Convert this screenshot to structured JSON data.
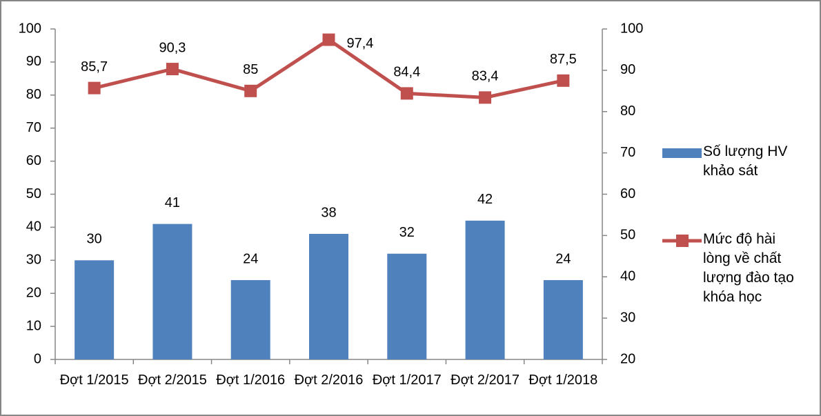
{
  "chart_data": {
    "type": "bar",
    "categories": [
      "Đợt 1/2015",
      "Đợt 2/2015",
      "Đợt 1/2016",
      "Đợt 2/2016",
      "Đợt 1/2017",
      "Đợt 2/2017",
      "Đợt 1/2018"
    ],
    "series": [
      {
        "name": "Số lượng HV khảo sát",
        "type": "bar",
        "color": "#4f81bd",
        "values": [
          30,
          41,
          24,
          38,
          32,
          42,
          24
        ]
      },
      {
        "name": "Mức độ hài lòng về chất lượng đào tạo khóa học",
        "type": "line",
        "axis": "y2",
        "color": "#c0504d",
        "values": [
          85.7,
          90.3,
          85,
          97.4,
          84.4,
          83.4,
          87.5
        ],
        "value_labels": [
          "85,7",
          "90,3",
          "85",
          "97,4",
          "84,4",
          "83,4",
          "87,5"
        ]
      }
    ],
    "ylim": [
      0,
      100
    ],
    "yticks": [
      0,
      10,
      20,
      30,
      40,
      50,
      60,
      70,
      80,
      90,
      100
    ],
    "y2lim": [
      20,
      100
    ],
    "y2ticks": [
      20,
      30,
      40,
      50,
      60,
      70,
      80,
      90,
      100
    ],
    "legend": "right"
  }
}
